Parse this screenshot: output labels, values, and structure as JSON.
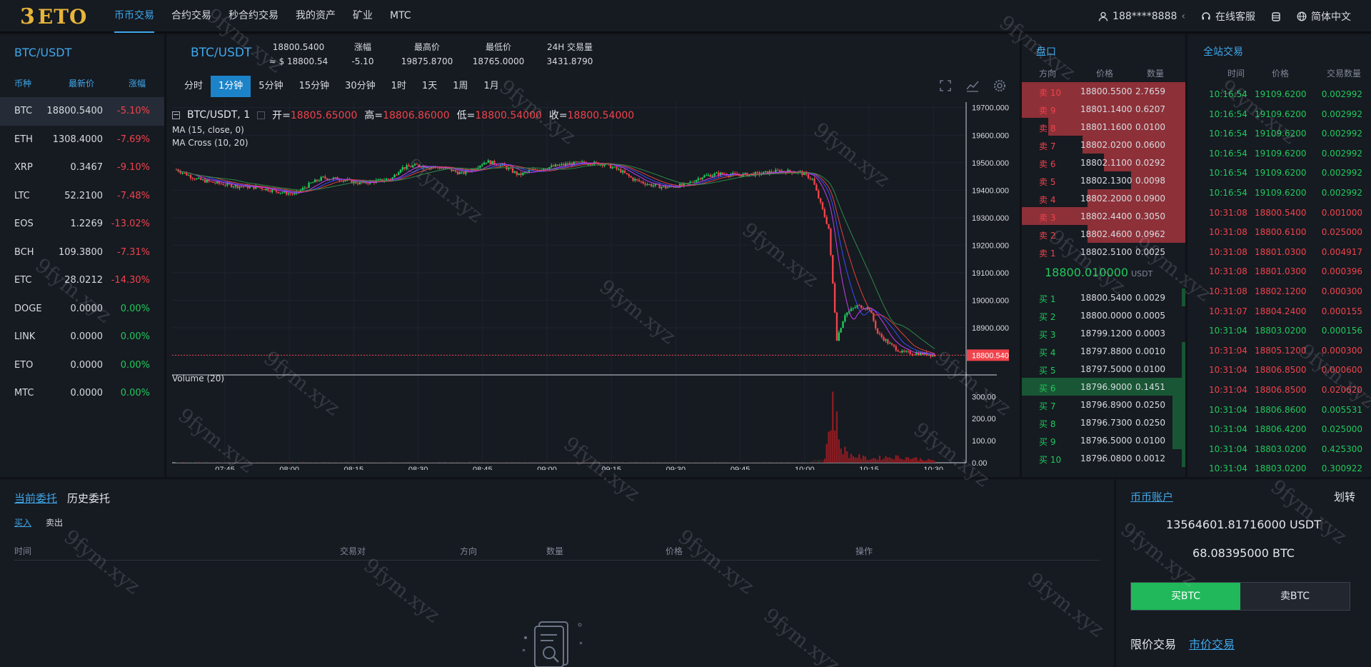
{
  "brand": {
    "mark": "3",
    "name": "ETO"
  },
  "nav": [
    "币币交易",
    "合约交易",
    "秒合约交易",
    "我的资产",
    "矿业",
    "MTC"
  ],
  "top_right": {
    "user": "188****8888",
    "user_chevron": "‹",
    "service": "在线客服",
    "language": "简体中文"
  },
  "market": {
    "pair_title": "BTC/USDT",
    "headers": [
      "币种",
      "最新价",
      "涨幅"
    ],
    "rows": [
      {
        "name": "BTC",
        "price": "18800.5400",
        "change": "-5.10%",
        "dir": "down"
      },
      {
        "name": "ETH",
        "price": "1308.4000",
        "change": "-7.69%",
        "dir": "down"
      },
      {
        "name": "XRP",
        "price": "0.3467",
        "change": "-9.10%",
        "dir": "down"
      },
      {
        "name": "LTC",
        "price": "52.2100",
        "change": "-7.48%",
        "dir": "down"
      },
      {
        "name": "EOS",
        "price": "1.2269",
        "change": "-13.02%",
        "dir": "down"
      },
      {
        "name": "BCH",
        "price": "109.3800",
        "change": "-7.31%",
        "dir": "down"
      },
      {
        "name": "ETC",
        "price": "28.0212",
        "change": "-14.30%",
        "dir": "down"
      },
      {
        "name": "DOGE",
        "price": "0.0000",
        "change": "0.00%",
        "dir": "up"
      },
      {
        "name": "LINK",
        "price": "0.0000",
        "change": "0.00%",
        "dir": "up"
      },
      {
        "name": "ETO",
        "price": "0.0000",
        "change": "0.00%",
        "dir": "up"
      },
      {
        "name": "MTC",
        "price": "0.0000",
        "change": "0.00%",
        "dir": "up"
      }
    ]
  },
  "chart_header": {
    "pair": "BTC/USDT",
    "last_price": "18800.5400",
    "last_price_usd": "≈ $ 18800.54",
    "stats": [
      {
        "label": "涨幅",
        "value": "-5.10"
      },
      {
        "label": "最高价",
        "value": "19875.8700"
      },
      {
        "label": "最低价",
        "value": "18765.0000"
      },
      {
        "label": "24H 交易量",
        "value": "3431.8790"
      }
    ],
    "timeframes": [
      "分时",
      "1分钟",
      "5分钟",
      "15分钟",
      "30分钟",
      "1时",
      "1天",
      "1周",
      "1月"
    ],
    "active_timeframe": "1分钟"
  },
  "chart_data": {
    "type": "candlestick",
    "title": "BTC/USDT, 1",
    "ohlc": {
      "open_label": "开=",
      "open": "18805.65000",
      "high_label": "高=",
      "high": "18806.86000",
      "low_label": "低=",
      "low": "18800.54000",
      "close_label": "收=",
      "close": "18800.54000"
    },
    "indicators": [
      "MA (15, close, 0)",
      "MA Cross (10, 20)"
    ],
    "volume_label": "Volume (20)",
    "x_ticks": [
      "07:45",
      "08:00",
      "08:15",
      "08:30",
      "08:45",
      "09:00",
      "09:15",
      "09:30",
      "09:45",
      "10:00",
      "10:15",
      "10:30"
    ],
    "y_ticks": [
      "19700.000000",
      "19600.000000",
      "19500.000000",
      "19400.000000",
      "19300.000000",
      "19200.000000",
      "19100.000000",
      "19000.000000",
      "18900.000000",
      "18800.000000"
    ],
    "y_range": [
      18760,
      19720
    ],
    "volume_ticks": [
      "300.00",
      "200.00",
      "100.00",
      "0.00"
    ],
    "volume_range": [
      0,
      340
    ],
    "current_price_label": "18800.54000",
    "price_path": [
      [
        0,
        19475
      ],
      [
        10,
        19440
      ],
      [
        20,
        19425
      ],
      [
        30,
        19415
      ],
      [
        40,
        19410
      ],
      [
        50,
        19395
      ],
      [
        58,
        19385
      ],
      [
        66,
        19425
      ],
      [
        72,
        19445
      ],
      [
        80,
        19440
      ],
      [
        90,
        19425
      ],
      [
        100,
        19435
      ],
      [
        106,
        19445
      ],
      [
        110,
        19480
      ],
      [
        118,
        19490
      ],
      [
        126,
        19485
      ],
      [
        134,
        19475
      ],
      [
        140,
        19460
      ],
      [
        146,
        19480
      ],
      [
        152,
        19505
      ],
      [
        160,
        19490
      ],
      [
        168,
        19455
      ],
      [
        176,
        19475
      ],
      [
        184,
        19485
      ],
      [
        192,
        19495
      ],
      [
        200,
        19500
      ],
      [
        210,
        19495
      ],
      [
        218,
        19470
      ],
      [
        224,
        19440
      ],
      [
        232,
        19420
      ],
      [
        240,
        19410
      ],
      [
        250,
        19420
      ],
      [
        258,
        19450
      ],
      [
        266,
        19460
      ],
      [
        276,
        19455
      ],
      [
        286,
        19460
      ],
      [
        296,
        19470
      ],
      [
        306,
        19465
      ],
      [
        312,
        19440
      ],
      [
        320,
        19260
      ],
      [
        324,
        18860
      ],
      [
        328,
        18950
      ],
      [
        334,
        18980
      ],
      [
        340,
        18970
      ],
      [
        344,
        18880
      ],
      [
        350,
        18840
      ],
      [
        356,
        18810
      ],
      [
        362,
        18808
      ],
      [
        368,
        18805
      ],
      [
        372,
        18800
      ]
    ],
    "volume_path": [
      [
        312,
        10
      ],
      [
        318,
        22
      ],
      [
        322,
        300
      ],
      [
        326,
        80
      ],
      [
        330,
        40
      ],
      [
        340,
        20
      ],
      [
        350,
        30
      ],
      [
        360,
        25
      ],
      [
        372,
        10
      ]
    ]
  },
  "orderbook": {
    "title": "盘口",
    "headers": [
      "方向",
      "价格",
      "数量"
    ],
    "asks": [
      {
        "side": "卖 10",
        "price": "18800.5500",
        "qty": "2.7659",
        "depth": 1.0
      },
      {
        "side": "卖 9",
        "price": "18801.1400",
        "qty": "0.6207",
        "depth": 1.0
      },
      {
        "side": "卖 8",
        "price": "18801.1600",
        "qty": "0.0100",
        "depth": 0.84
      },
      {
        "side": "卖 7",
        "price": "18802.0200",
        "qty": "0.0600",
        "depth": 0.63
      },
      {
        "side": "卖 6",
        "price": "18802.1100",
        "qty": "0.0292",
        "depth": 0.5
      },
      {
        "side": "卖 5",
        "price": "18802.1300",
        "qty": "0.0098",
        "depth": 0.33
      },
      {
        "side": "卖 4",
        "price": "18802.2000",
        "qty": "0.0900",
        "depth": 0.6
      },
      {
        "side": "卖 3",
        "price": "18802.4400",
        "qty": "0.3050",
        "depth": 1.0
      },
      {
        "side": "卖 2",
        "price": "18802.4600",
        "qty": "0.0962",
        "depth": 0.6
      },
      {
        "side": "卖 1",
        "price": "18802.5100",
        "qty": "0.0025",
        "depth": 0.0
      }
    ],
    "mid_price": "18800.010000",
    "mid_unit": "USDT",
    "bids": [
      {
        "side": "买 1",
        "price": "18800.5400",
        "qty": "0.0029",
        "depth": 0.02
      },
      {
        "side": "买 2",
        "price": "18800.0000",
        "qty": "0.0005",
        "depth": 0.0
      },
      {
        "side": "买 3",
        "price": "18799.1200",
        "qty": "0.0003",
        "depth": 0.0
      },
      {
        "side": "买 4",
        "price": "18797.8800",
        "qty": "0.0010",
        "depth": 0.02
      },
      {
        "side": "买 5",
        "price": "18797.5000",
        "qty": "0.0100",
        "depth": 0.02
      },
      {
        "side": "买 6",
        "price": "18796.9000",
        "qty": "0.1451",
        "depth": 1.0
      },
      {
        "side": "买 7",
        "price": "18796.8900",
        "qty": "0.0250",
        "depth": 0.08
      },
      {
        "side": "买 8",
        "price": "18796.7300",
        "qty": "0.0250",
        "depth": 0.08
      },
      {
        "side": "买 9",
        "price": "18796.5000",
        "qty": "0.0100",
        "depth": 0.08
      },
      {
        "side": "买 10",
        "price": "18796.0800",
        "qty": "0.0012",
        "depth": 0.02
      }
    ]
  },
  "trades": {
    "title": "全站交易",
    "headers": [
      "时间",
      "价格",
      "交易数量"
    ],
    "rows": [
      {
        "time": "10:16:54",
        "price": "19109.6200",
        "qty": "0.002992",
        "dir": "up"
      },
      {
        "time": "10:16:54",
        "price": "19109.6200",
        "qty": "0.002992",
        "dir": "up"
      },
      {
        "time": "10:16:54",
        "price": "19109.6200",
        "qty": "0.002992",
        "dir": "up"
      },
      {
        "time": "10:16:54",
        "price": "19109.6200",
        "qty": "0.002992",
        "dir": "up"
      },
      {
        "time": "10:16:54",
        "price": "19109.6200",
        "qty": "0.002992",
        "dir": "up"
      },
      {
        "time": "10:16:54",
        "price": "19109.6200",
        "qty": "0.002992",
        "dir": "up"
      },
      {
        "time": "10:31:08",
        "price": "18800.5400",
        "qty": "0.001000",
        "dir": "down"
      },
      {
        "time": "10:31:08",
        "price": "18800.6100",
        "qty": "0.025000",
        "dir": "down"
      },
      {
        "time": "10:31:08",
        "price": "18801.0300",
        "qty": "0.004917",
        "dir": "down"
      },
      {
        "time": "10:31:08",
        "price": "18801.0300",
        "qty": "0.000396",
        "dir": "down"
      },
      {
        "time": "10:31:08",
        "price": "18802.1200",
        "qty": "0.000300",
        "dir": "down"
      },
      {
        "time": "10:31:07",
        "price": "18804.2400",
        "qty": "0.000155",
        "dir": "down"
      },
      {
        "time": "10:31:04",
        "price": "18803.0200",
        "qty": "0.000156",
        "dir": "up"
      },
      {
        "time": "10:31:04",
        "price": "18805.1200",
        "qty": "0.000300",
        "dir": "down"
      },
      {
        "time": "10:31:04",
        "price": "18806.8500",
        "qty": "0.000600",
        "dir": "down"
      },
      {
        "time": "10:31:04",
        "price": "18806.8500",
        "qty": "0.020620",
        "dir": "down"
      },
      {
        "time": "10:31:04",
        "price": "18806.8600",
        "qty": "0.005531",
        "dir": "up"
      },
      {
        "time": "10:31:04",
        "price": "18806.4200",
        "qty": "0.025000",
        "dir": "up"
      },
      {
        "time": "10:31:04",
        "price": "18803.0200",
        "qty": "0.425300",
        "dir": "up"
      },
      {
        "time": "10:31:04",
        "price": "18803.0200",
        "qty": "0.300922",
        "dir": "up"
      }
    ]
  },
  "orders": {
    "tabs": [
      "当前委托",
      "历史委托"
    ],
    "subtabs": [
      "买入",
      "卖出"
    ],
    "columns": [
      "时间",
      "交易对",
      "方向",
      "数量",
      "价格",
      "操作"
    ]
  },
  "account": {
    "title": "币币账户",
    "transfer": "划转",
    "balance_usdt": "13564601.81716000 USDT",
    "balance_btc": "68.08395000 BTC",
    "buy_label": "买BTC",
    "sell_label": "卖BTC",
    "types": [
      "限价交易",
      "市价交易"
    ]
  },
  "watermark": "9fym.xyz",
  "colors": {
    "accent": "#3fa8ea",
    "up": "#20c95c",
    "down": "#f0434c",
    "panel": "#161a21"
  }
}
